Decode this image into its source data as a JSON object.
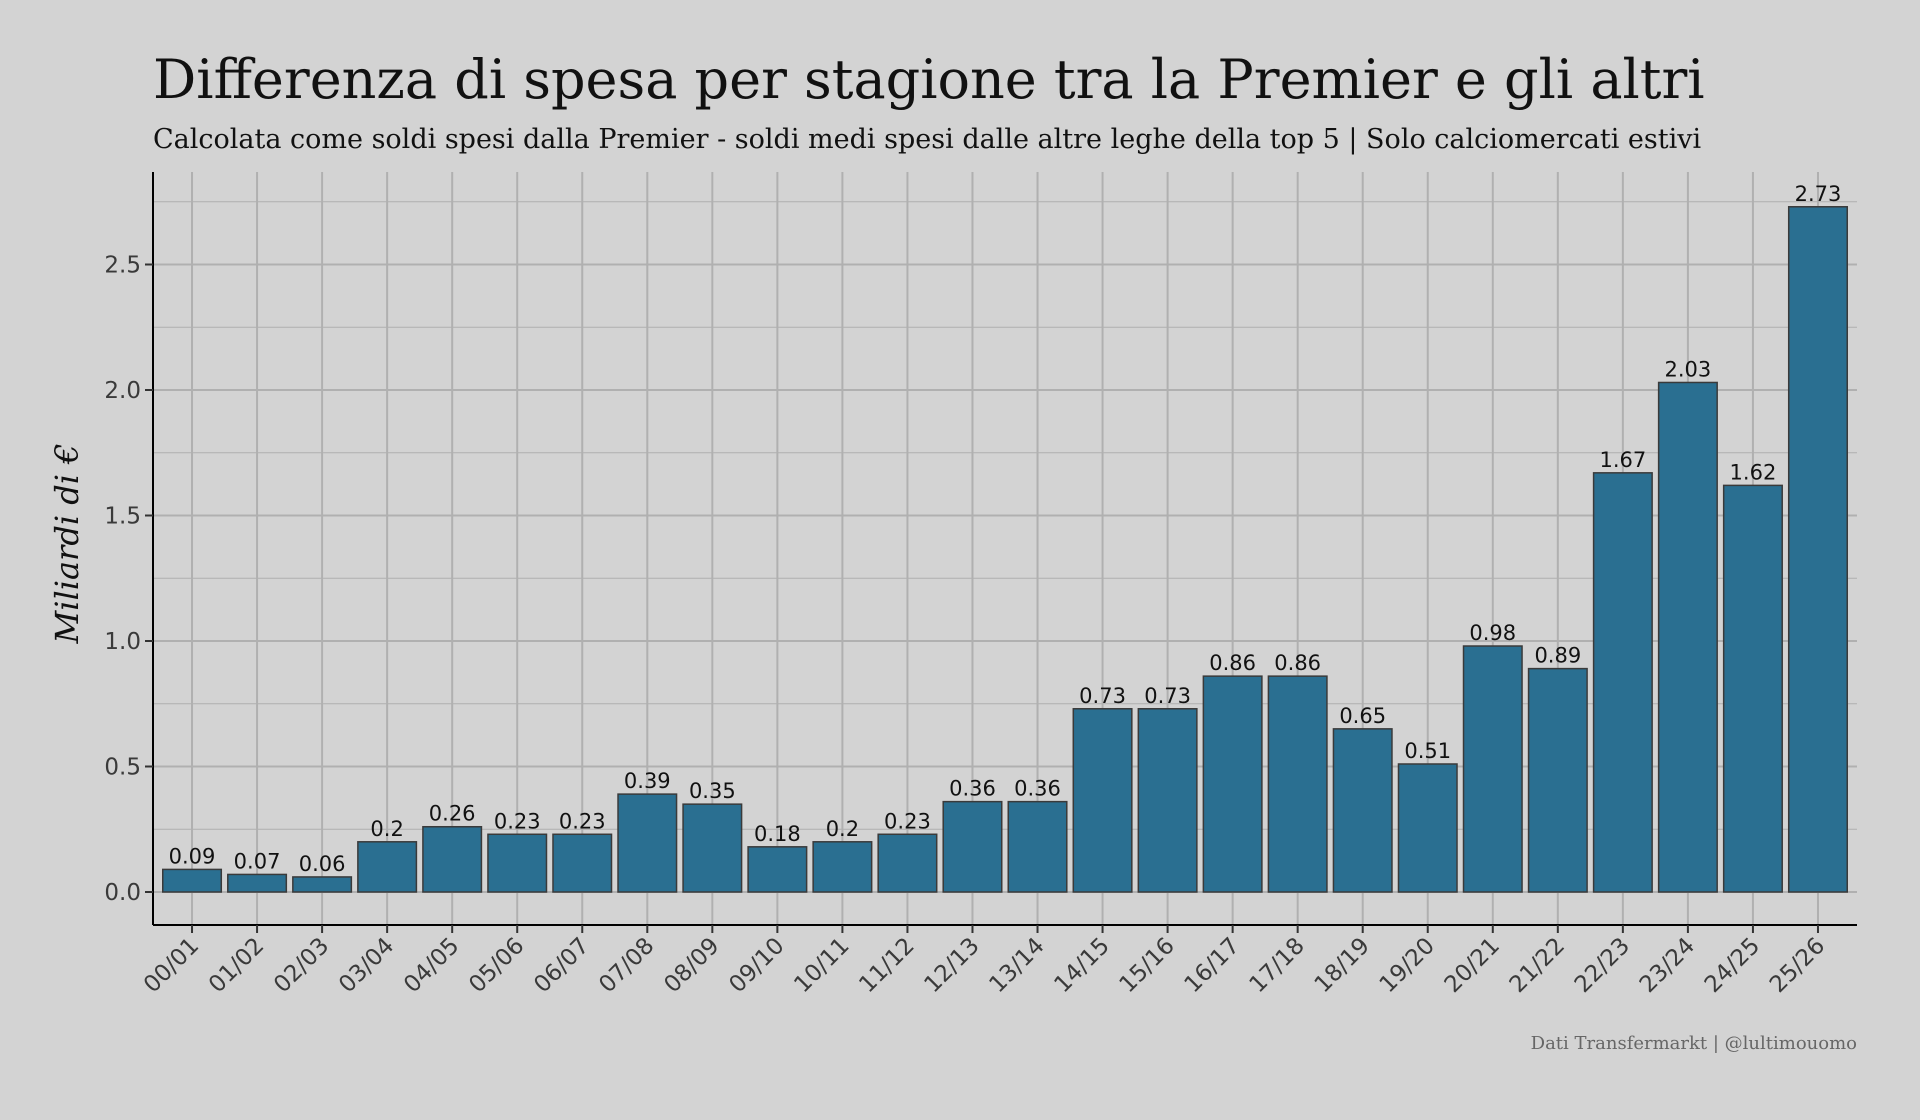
{
  "colors": {
    "background": "#d3d3d3",
    "bar_fill": "#2a6f91",
    "bar_stroke": "#3a3a3a",
    "grid": "#b0b0b0",
    "axis": "#000000"
  },
  "caption": "Dati Transfermarkt | @lultimouomo",
  "chart_data": {
    "type": "bar",
    "title": "Differenza di spesa per stagione tra la Premier e gli altri",
    "subtitle": "Calcolata come soldi spesi dalla Premier - soldi medi spesi dalle altre leghe della top 5 | Solo calciomercati estivi",
    "xlabel": "",
    "ylabel": "Miliardi di €",
    "ylim": [
      0,
      2.8
    ],
    "yticks": [
      0,
      0.5,
      1,
      1.5,
      2,
      2.5
    ],
    "ytick_labels": [
      "0.0",
      "0.5",
      "1.0",
      "1.5",
      "2.0",
      "2.5"
    ],
    "grid": true,
    "categories": [
      "00/01",
      "01/02",
      "02/03",
      "03/04",
      "04/05",
      "05/06",
      "06/07",
      "07/08",
      "08/09",
      "09/10",
      "10/11",
      "11/12",
      "12/13",
      "13/14",
      "14/15",
      "15/16",
      "16/17",
      "17/18",
      "18/19",
      "19/20",
      "20/21",
      "21/22",
      "22/23",
      "23/24",
      "24/25",
      "25/26"
    ],
    "values": [
      0.09,
      0.07,
      0.06,
      0.2,
      0.26,
      0.23,
      0.23,
      0.39,
      0.35,
      0.18,
      0.2,
      0.23,
      0.36,
      0.36,
      0.73,
      0.73,
      0.86,
      0.86,
      0.65,
      0.51,
      0.98,
      0.89,
      1.67,
      2.03,
      1.62,
      2.73
    ],
    "value_labels": [
      "0.09",
      "0.07",
      "0.06",
      "0.2",
      "0.26",
      "0.23",
      "0.23",
      "0.39",
      "0.35",
      "0.18",
      "0.2",
      "0.23",
      "0.36",
      "0.36",
      "0.73",
      "0.73",
      "0.86",
      "0.86",
      "0.65",
      "0.51",
      "0.98",
      "0.89",
      "1.67",
      "2.03",
      "1.62",
      "2.73"
    ]
  }
}
